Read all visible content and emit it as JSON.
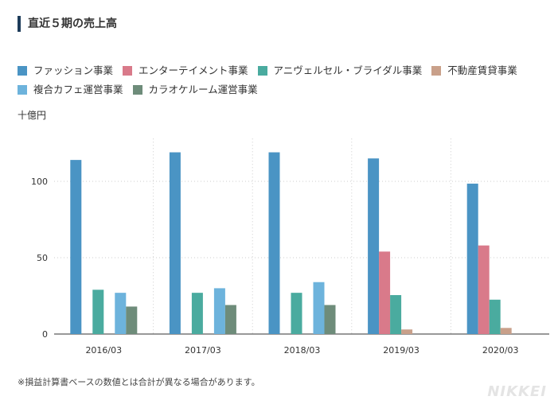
{
  "title": "直近５期の売上高",
  "unit": "十億円",
  "note": "※損益計算書ベースの数値とは合計が異なる場合があります。",
  "logo": "NIKKEI",
  "chart_data": {
    "type": "bar",
    "categories": [
      "2016/03",
      "2017/03",
      "2018/03",
      "2019/03",
      "2020/03"
    ],
    "ylim": [
      0,
      128
    ],
    "yticks": [
      0,
      50,
      100
    ],
    "legend_position": "top",
    "series": [
      {
        "name": "ファッション事業",
        "color": "#4a94c4",
        "values": [
          114,
          119,
          119,
          115,
          98.5
        ]
      },
      {
        "name": "エンターテイメント事業",
        "color": "#d97a8a",
        "values": [
          null,
          null,
          null,
          54,
          58
        ]
      },
      {
        "name": "アニヴェルセル・ブライダル事業",
        "color": "#4aab9f",
        "values": [
          29,
          27,
          27,
          25.5,
          22.5
        ]
      },
      {
        "name": "不動産賃貸事業",
        "color": "#c9a08a",
        "values": [
          null,
          null,
          null,
          3,
          4
        ]
      },
      {
        "name": "複合カフェ運営事業",
        "color": "#6db3dc",
        "values": [
          27,
          30,
          34,
          null,
          null
        ]
      },
      {
        "name": "カラオケルーム運営事業",
        "color": "#6e8c7a",
        "values": [
          18,
          19,
          19,
          null,
          null
        ]
      }
    ]
  }
}
